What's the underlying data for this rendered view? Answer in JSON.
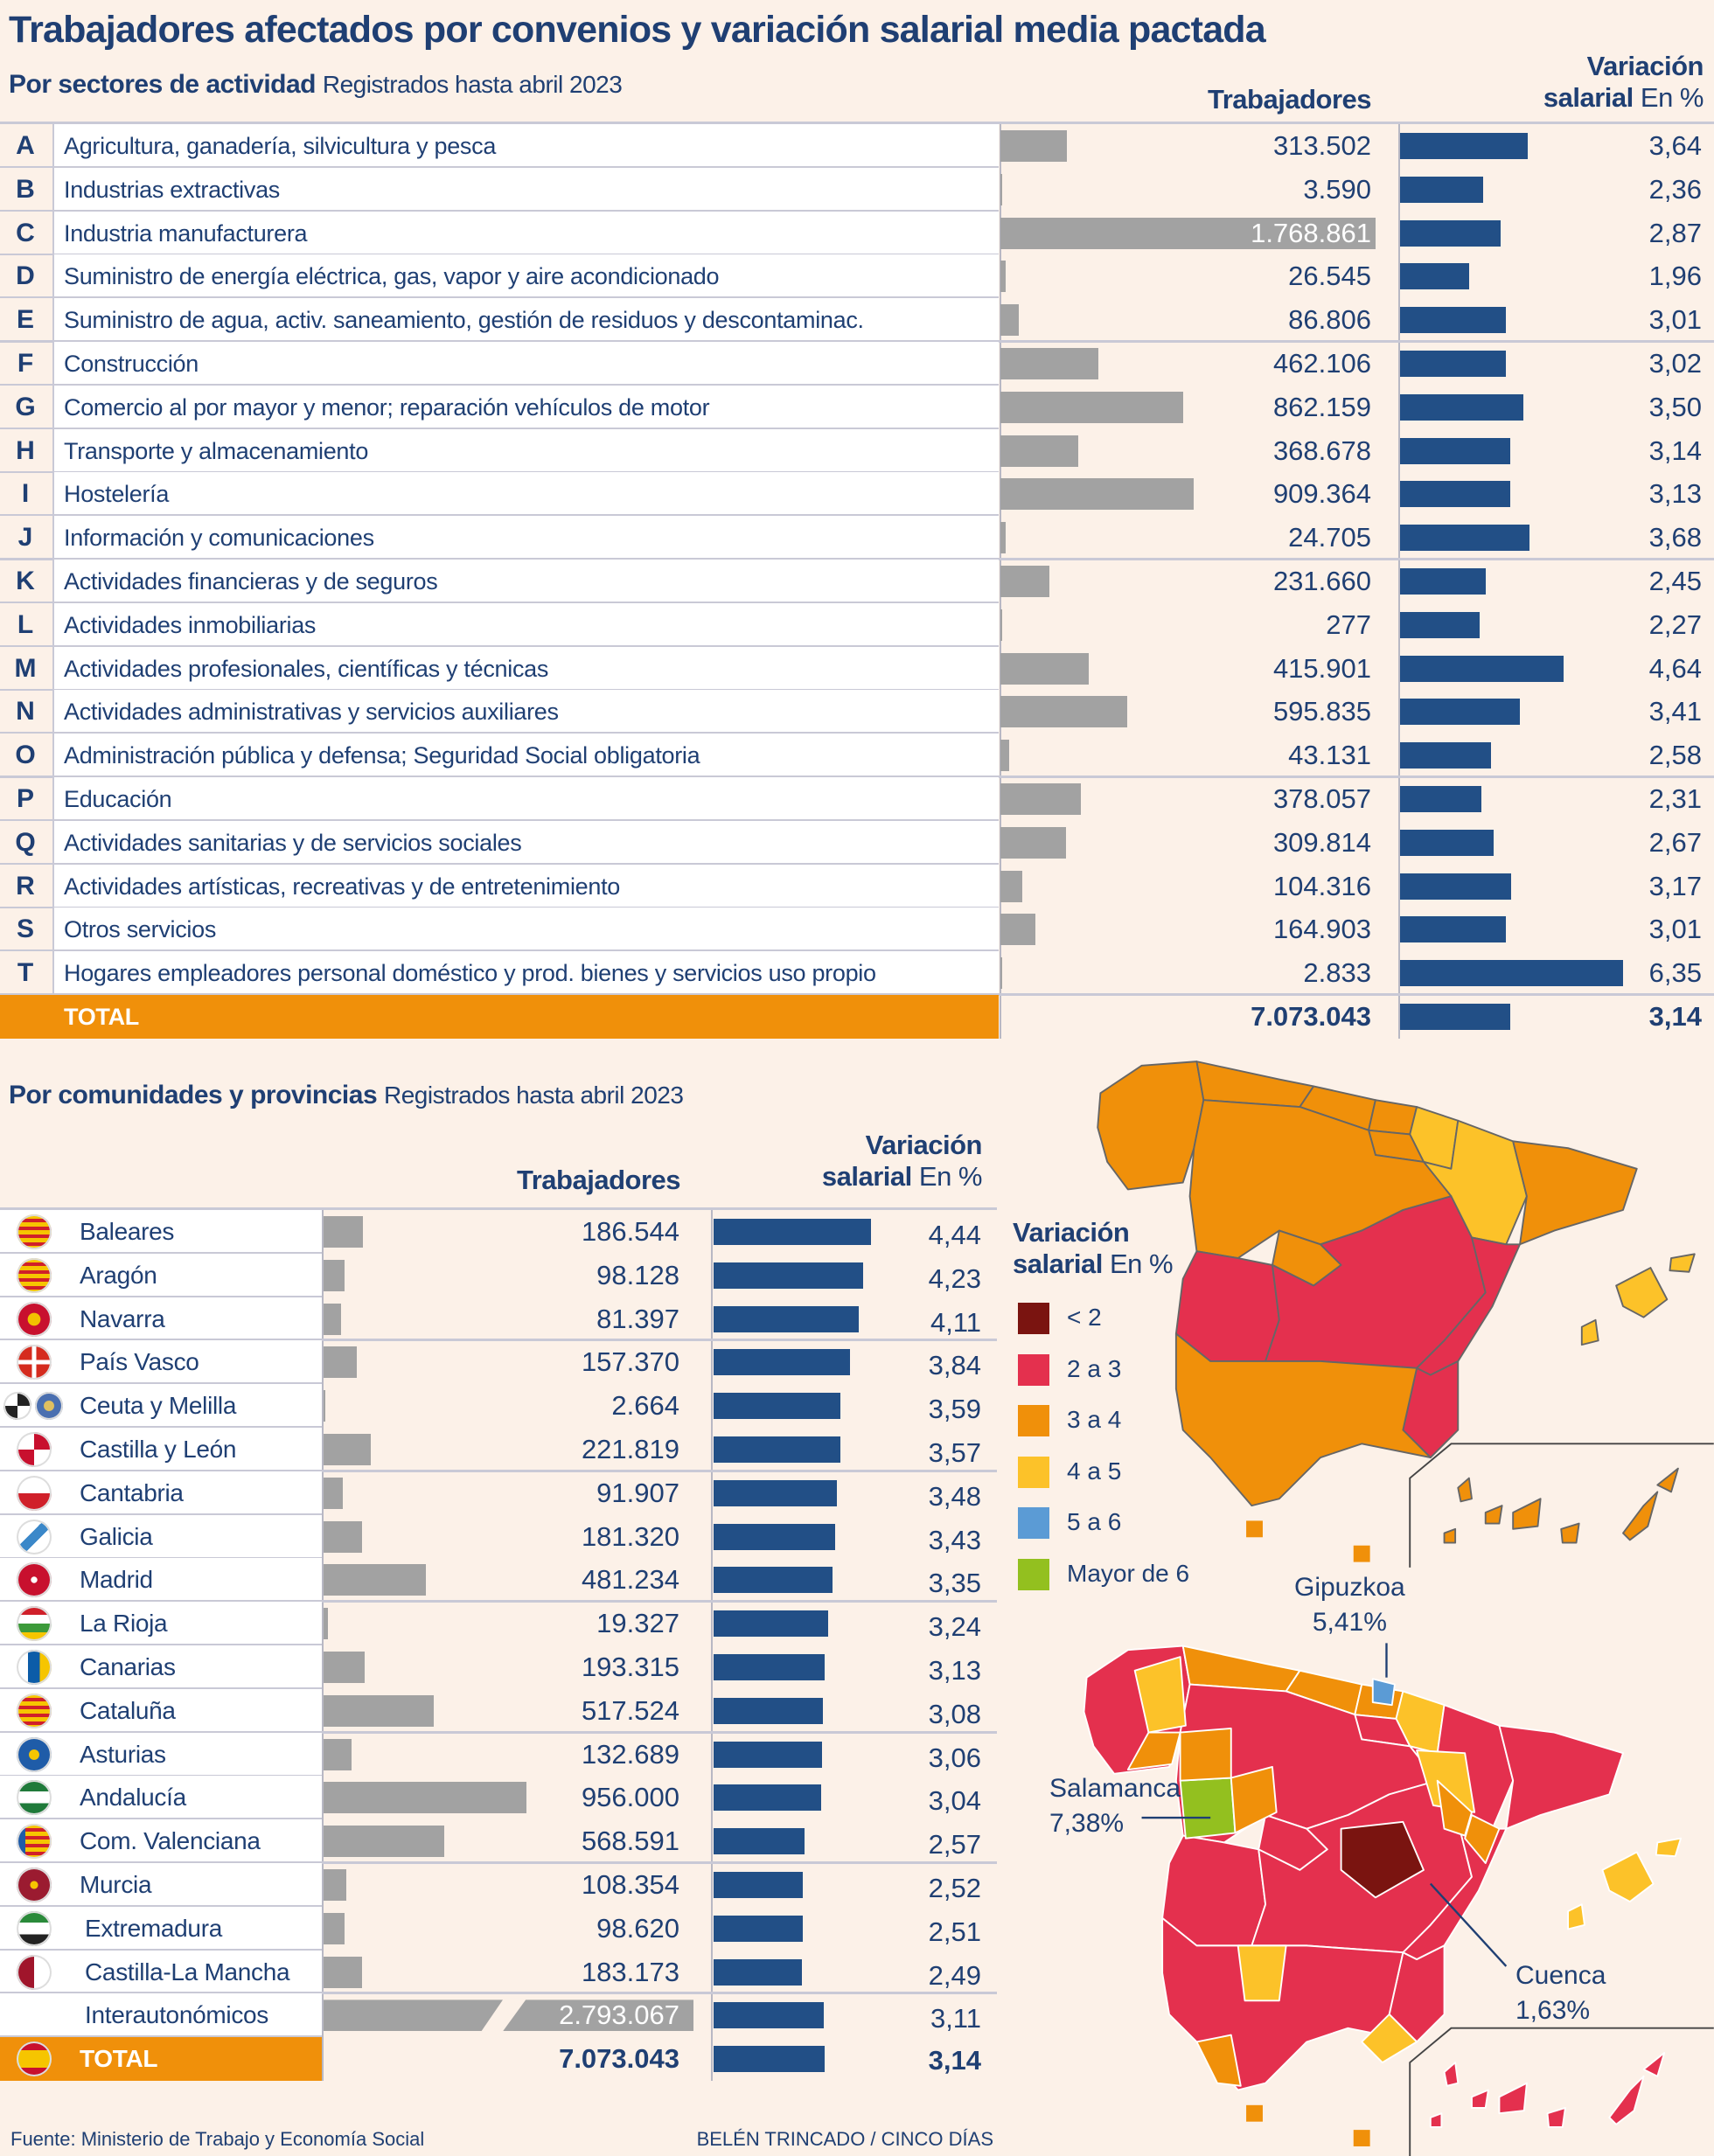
{
  "title": "Trabajadores afectados por convenios y variación salarial media pactada",
  "colors": {
    "navy_text": "#1f3f73",
    "bar_blue": "#224f86",
    "bar_gray": "#a2a2a2",
    "total_orange": "#f0900a",
    "background": "#fcf1e8"
  },
  "sectors": {
    "subtitle_bold": "Por sectores de actividad",
    "subtitle_normal": "Registrados hasta abril 2023",
    "col_workers": "Trabajadores",
    "col_var_line1": "Variación",
    "col_var_line2_bold": "salarial",
    "col_var_line2_unit": "En %",
    "rows": [
      {
        "code": "A",
        "label": "Agricultura, ganadería, silvicultura y pesca",
        "workers": "313.502",
        "var": "3,64"
      },
      {
        "code": "B",
        "label": "Industrias extractivas",
        "workers": "3.590",
        "var": "2,36"
      },
      {
        "code": "C",
        "label": "Industria manufacturera",
        "workers": "1.768.861",
        "var": "2,87"
      },
      {
        "code": "D",
        "label": "Suministro de energía eléctrica, gas, vapor y aire acondicionado",
        "workers": "26.545",
        "var": "1,96"
      },
      {
        "code": "E",
        "label": "Suministro de agua, activ. saneamiento, gestión de residuos y descontaminac.",
        "workers": "86.806",
        "var": "3,01"
      },
      {
        "code": "F",
        "label": "Construcción",
        "workers": "462.106",
        "var": "3,02"
      },
      {
        "code": "G",
        "label": "Comercio al por mayor y menor; reparación vehículos de motor",
        "workers": "862.159",
        "var": "3,50"
      },
      {
        "code": "H",
        "label": "Transporte y almacenamiento",
        "workers": "368.678",
        "var": "3,14"
      },
      {
        "code": "I",
        "label": "Hostelería",
        "workers": "909.364",
        "var": "3,13"
      },
      {
        "code": "J",
        "label": "Información y comunicaciones",
        "workers": "24.705",
        "var": "3,68"
      },
      {
        "code": "K",
        "label": "Actividades financieras y de seguros",
        "workers": "231.660",
        "var": "2,45"
      },
      {
        "code": "L",
        "label": "Actividades inmobiliarias",
        "workers": "277",
        "var": "2,27"
      },
      {
        "code": "M",
        "label": "Actividades profesionales, científicas y técnicas",
        "workers": "415.901",
        "var": "4,64"
      },
      {
        "code": "N",
        "label": "Actividades administrativas y servicios auxiliares",
        "workers": "595.835",
        "var": "3,41"
      },
      {
        "code": "O",
        "label": "Administración pública y defensa; Seguridad Social obligatoria",
        "workers": "43.131",
        "var": "2,58"
      },
      {
        "code": "P",
        "label": "Educación",
        "workers": "378.057",
        "var": "2,31"
      },
      {
        "code": "Q",
        "label": "Actividades sanitarias y de servicios sociales",
        "workers": "309.814",
        "var": "2,67"
      },
      {
        "code": "R",
        "label": "Actividades artísticas, recreativas y de entretenimiento",
        "workers": "104.316",
        "var": "3,17"
      },
      {
        "code": "S",
        "label": "Otros servicios",
        "workers": "164.903",
        "var": "3,01"
      },
      {
        "code": "T",
        "label": "Hogares empleadores personal doméstico y prod. bienes y servicios uso propio",
        "workers": "2.833",
        "var": "6,35"
      }
    ],
    "total": {
      "label": "TOTAL",
      "workers": "7.073.043",
      "var": "3,14"
    }
  },
  "regions": {
    "subtitle_bold": "Por comunidades y provincias",
    "subtitle_normal": "Registrados hasta abril 2023",
    "col_workers": "Trabajadores",
    "col_var_line1": "Variación",
    "col_var_line2_bold": "salarial",
    "col_var_line2_unit": "En %",
    "rows": [
      {
        "label": "Baleares",
        "workers": "186.544",
        "var": "4,44",
        "flag": "baleares-flag"
      },
      {
        "label": "Aragón",
        "workers": "98.128",
        "var": "4,23",
        "flag": "aragon-flag"
      },
      {
        "label": "Navarra",
        "workers": "81.397",
        "var": "4,11",
        "flag": "navarra-flag"
      },
      {
        "label": "País Vasco",
        "workers": "157.370",
        "var": "3,84",
        "flag": "pais-vasco-flag"
      },
      {
        "label": "Ceuta y Melilla",
        "workers": "2.664",
        "var": "3,59",
        "flag": "ceuta-melilla-flags"
      },
      {
        "label": "Castilla y León",
        "workers": "221.819",
        "var": "3,57",
        "flag": "castilla-leon-flag"
      },
      {
        "label": "Cantabria",
        "workers": "91.907",
        "var": "3,48",
        "flag": "cantabria-flag"
      },
      {
        "label": "Galicia",
        "workers": "181.320",
        "var": "3,43",
        "flag": "galicia-flag"
      },
      {
        "label": "Madrid",
        "workers": "481.234",
        "var": "3,35",
        "flag": "madrid-flag"
      },
      {
        "label": "La Rioja",
        "workers": "19.327",
        "var": "3,24",
        "flag": "la-rioja-flag"
      },
      {
        "label": "Canarias",
        "workers": "193.315",
        "var": "3,13",
        "flag": "canarias-flag"
      },
      {
        "label": "Cataluña",
        "workers": "517.524",
        "var": "3,08",
        "flag": "cataluna-flag"
      },
      {
        "label": "Asturias",
        "workers": "132.689",
        "var": "3,06",
        "flag": "asturias-flag"
      },
      {
        "label": "Andalucía",
        "workers": "956.000",
        "var": "3,04",
        "flag": "andalucia-flag"
      },
      {
        "label": "Com. Valenciana",
        "workers": "568.591",
        "var": "2,57",
        "flag": "valenciana-flag"
      },
      {
        "label": "Murcia",
        "workers": "108.354",
        "var": "2,52",
        "flag": "murcia-flag"
      },
      {
        "label": "Extremadura",
        "workers": "98.620",
        "var": "2,51",
        "flag": "extremadura-flag"
      },
      {
        "label": "Castilla-La Mancha",
        "workers": "183.173",
        "var": "2,49",
        "flag": "castilla-la-mancha-flag"
      },
      {
        "label": "Interautonómicos",
        "workers": "2.793.067",
        "var": "3,11",
        "flag": ""
      }
    ],
    "total": {
      "label": "TOTAL",
      "workers": "7.073.043",
      "var": "3,14",
      "flag": "spain-flag"
    }
  },
  "legend": {
    "title_line1": "Variación",
    "title_line2_bold": "salarial",
    "title_line2_unit": "En %",
    "items": [
      {
        "label": "< 2",
        "color": "#7a1410"
      },
      {
        "label": "2 a 3",
        "color": "#e4304e"
      },
      {
        "label": "3 a 4",
        "color": "#f0900a"
      },
      {
        "label": "4 a 5",
        "color": "#fcc229"
      },
      {
        "label": "5 a 6",
        "color": "#5b9bd5"
      },
      {
        "label": "Mayor de 6",
        "color": "#93c01f"
      }
    ]
  },
  "annotations": [
    {
      "name": "Gipuzkoa",
      "value": "5,41%"
    },
    {
      "name": "Salamanca",
      "value": "7,38%"
    },
    {
      "name": "Cuenca",
      "value": "1,63%"
    }
  ],
  "footer": {
    "source": "Fuente: Ministerio de Trabajo y Economía Social",
    "credit": "BELÉN TRINCADO / CINCO DÍAS"
  }
}
